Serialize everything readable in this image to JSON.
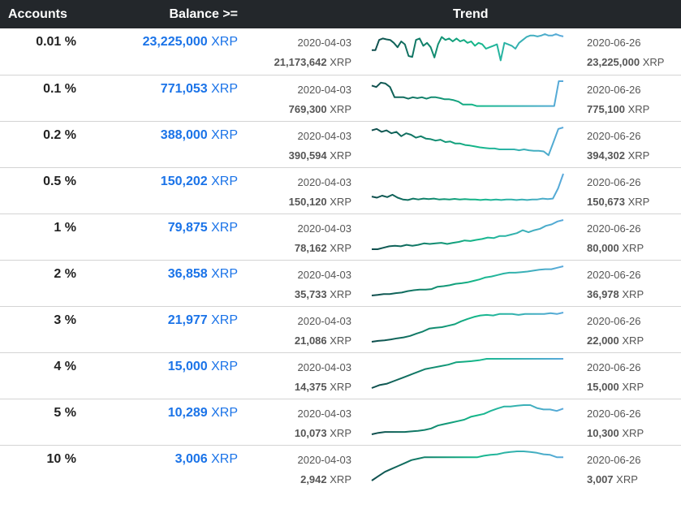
{
  "header": {
    "accounts": "Accounts",
    "balance": "Balance >=",
    "trend": "Trend"
  },
  "unit": "XRP",
  "rows": [
    {
      "accounts": "0.01 %",
      "balance": "23,225,000",
      "start_date": "2020-04-03",
      "start_value": "21,173,642",
      "end_date": "2020-06-26",
      "end_value": "23,225,000",
      "trend": [
        0.55,
        0.55,
        0.2,
        0.15,
        0.18,
        0.2,
        0.3,
        0.45,
        0.25,
        0.35,
        0.75,
        0.78,
        0.2,
        0.15,
        0.4,
        0.3,
        0.45,
        0.8,
        0.35,
        0.1,
        0.2,
        0.15,
        0.25,
        0.15,
        0.25,
        0.2,
        0.3,
        0.25,
        0.4,
        0.3,
        0.35,
        0.5,
        0.45,
        0.4,
        0.35,
        0.9,
        0.3,
        0.35,
        0.4,
        0.5,
        0.3,
        0.2,
        0.1,
        0.05,
        0.05,
        0.08,
        0.05,
        0.0,
        0.05,
        0.05,
        0.0,
        0.05,
        0.08
      ]
    },
    {
      "accounts": "0.1 %",
      "balance": "771,053",
      "start_date": "2020-04-03",
      "start_value": "769,300",
      "end_date": "2020-06-26",
      "end_value": "775,100",
      "trend": [
        0.15,
        0.2,
        0.05,
        0.08,
        0.2,
        0.55,
        0.55,
        0.55,
        0.6,
        0.55,
        0.58,
        0.55,
        0.6,
        0.55,
        0.55,
        0.58,
        0.62,
        0.62,
        0.65,
        0.7,
        0.8,
        0.8,
        0.8,
        0.85,
        0.85,
        0.85,
        0.85,
        0.85,
        0.85,
        0.85,
        0.85,
        0.85,
        0.85,
        0.85,
        0.85,
        0.85,
        0.85,
        0.85,
        0.85,
        0.85,
        0.85,
        0.0,
        0.0
      ]
    },
    {
      "accounts": "0.2 %",
      "balance": "388,000",
      "start_date": "2020-04-03",
      "start_value": "390,594",
      "end_date": "2020-06-26",
      "end_value": "394,302",
      "trend": [
        0.1,
        0.05,
        0.15,
        0.1,
        0.2,
        0.15,
        0.3,
        0.2,
        0.25,
        0.35,
        0.3,
        0.38,
        0.4,
        0.45,
        0.42,
        0.5,
        0.48,
        0.55,
        0.55,
        0.6,
        0.62,
        0.65,
        0.68,
        0.7,
        0.72,
        0.72,
        0.75,
        0.75,
        0.75,
        0.75,
        0.78,
        0.75,
        0.78,
        0.8,
        0.8,
        0.82,
        0.95,
        0.5,
        0.05,
        0.0
      ]
    },
    {
      "accounts": "0.5 %",
      "balance": "150,202",
      "start_date": "2020-04-03",
      "start_value": "150,120",
      "end_date": "2020-06-26",
      "end_value": "150,673",
      "trend": [
        0.78,
        0.82,
        0.75,
        0.8,
        0.72,
        0.82,
        0.88,
        0.9,
        0.85,
        0.88,
        0.85,
        0.87,
        0.85,
        0.88,
        0.87,
        0.88,
        0.86,
        0.88,
        0.87,
        0.88,
        0.88,
        0.9,
        0.88,
        0.9,
        0.88,
        0.9,
        0.88,
        0.88,
        0.9,
        0.88,
        0.9,
        0.88,
        0.88,
        0.85,
        0.87,
        0.85,
        0.5,
        0.0
      ]
    },
    {
      "accounts": "1 %",
      "balance": "79,875",
      "start_date": "2020-04-03",
      "start_value": "78,162",
      "end_date": "2020-06-26",
      "end_value": "80,000",
      "trend": [
        1.0,
        1.0,
        0.95,
        0.9,
        0.88,
        0.9,
        0.85,
        0.88,
        0.85,
        0.8,
        0.82,
        0.8,
        0.78,
        0.82,
        0.78,
        0.75,
        0.7,
        0.72,
        0.68,
        0.65,
        0.6,
        0.62,
        0.55,
        0.55,
        0.5,
        0.45,
        0.35,
        0.42,
        0.35,
        0.3,
        0.2,
        0.15,
        0.05,
        0.0
      ]
    },
    {
      "accounts": "2 %",
      "balance": "36,858",
      "start_date": "2020-04-03",
      "start_value": "35,733",
      "end_date": "2020-06-26",
      "end_value": "36,978",
      "trend": [
        1.0,
        0.98,
        0.95,
        0.95,
        0.92,
        0.9,
        0.85,
        0.82,
        0.8,
        0.8,
        0.78,
        0.7,
        0.68,
        0.65,
        0.6,
        0.58,
        0.55,
        0.5,
        0.45,
        0.38,
        0.35,
        0.3,
        0.25,
        0.22,
        0.22,
        0.2,
        0.18,
        0.15,
        0.12,
        0.1,
        0.1,
        0.05,
        0.0
      ]
    },
    {
      "accounts": "3 %",
      "balance": "21,977",
      "start_date": "2020-04-03",
      "start_value": "21,086",
      "end_date": "2020-06-26",
      "end_value": "22,000",
      "trend": [
        1.0,
        0.97,
        0.95,
        0.92,
        0.88,
        0.85,
        0.8,
        0.72,
        0.65,
        0.55,
        0.52,
        0.5,
        0.45,
        0.4,
        0.3,
        0.22,
        0.15,
        0.1,
        0.08,
        0.1,
        0.05,
        0.05,
        0.05,
        0.08,
        0.05,
        0.05,
        0.05,
        0.05,
        0.02,
        0.05,
        0.0
      ]
    },
    {
      "accounts": "4 %",
      "balance": "15,000",
      "start_date": "2020-04-03",
      "start_value": "14,375",
      "end_date": "2020-06-26",
      "end_value": "15,000",
      "trend": [
        1.0,
        0.9,
        0.85,
        0.75,
        0.65,
        0.55,
        0.45,
        0.35,
        0.3,
        0.25,
        0.2,
        0.12,
        0.1,
        0.08,
        0.05,
        0.0,
        0.0,
        0.0,
        0.0,
        0.0,
        0.0,
        0.0,
        0.0,
        0.0,
        0.0,
        0.0
      ]
    },
    {
      "accounts": "5 %",
      "balance": "10,289",
      "start_date": "2020-04-03",
      "start_value": "10,073",
      "end_date": "2020-06-26",
      "end_value": "10,300",
      "trend": [
        1.0,
        0.95,
        0.92,
        0.92,
        0.92,
        0.92,
        0.9,
        0.88,
        0.85,
        0.8,
        0.7,
        0.65,
        0.6,
        0.55,
        0.5,
        0.4,
        0.35,
        0.3,
        0.2,
        0.12,
        0.05,
        0.05,
        0.02,
        0.0,
        0.0,
        0.1,
        0.15,
        0.15,
        0.2,
        0.12
      ]
    },
    {
      "accounts": "10 %",
      "balance": "3,006",
      "start_date": "2020-04-03",
      "start_value": "2,942",
      "end_date": "2020-06-26",
      "end_value": "3,007",
      "trend": [
        1.0,
        0.85,
        0.7,
        0.6,
        0.5,
        0.4,
        0.3,
        0.25,
        0.2,
        0.2,
        0.2,
        0.2,
        0.2,
        0.2,
        0.2,
        0.2,
        0.2,
        0.15,
        0.12,
        0.1,
        0.05,
        0.02,
        0.0,
        0.0,
        0.02,
        0.05,
        0.1,
        0.12,
        0.2,
        0.2
      ]
    }
  ],
  "colors": {
    "header_bg": "#23272b",
    "link_blue": "#1a73e8",
    "trend_start": "#0f4c4c",
    "trend_mid": "#14b88a",
    "trend_end": "#5aa9dc"
  }
}
